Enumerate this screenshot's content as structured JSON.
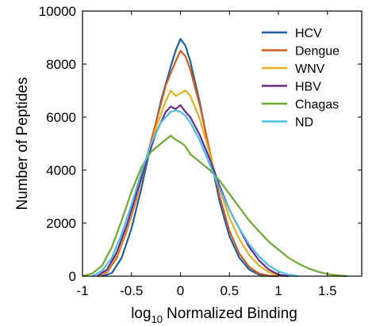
{
  "chart_data": {
    "type": "line",
    "xlabel_base": "log",
    "xlabel_subscript": "10",
    "xlabel_rest": "Normalized Binding",
    "ylabel": "Number of Peptides",
    "xlim": [
      -1,
      1.85
    ],
    "ylim": [
      0,
      10000
    ],
    "xticks": [
      "-1",
      "-0.5",
      "0",
      "0.5",
      "1",
      "1.5"
    ],
    "yticks": [
      "0",
      "2000",
      "4000",
      "6000",
      "8000",
      "10000"
    ],
    "legend_position": "top-right",
    "series": [
      {
        "name": "HCV",
        "color": "#1f5fa0",
        "points": [
          [
            -0.8,
            0
          ],
          [
            -0.7,
            120
          ],
          [
            -0.6,
            700
          ],
          [
            -0.5,
            1800
          ],
          [
            -0.4,
            3300
          ],
          [
            -0.3,
            5000
          ],
          [
            -0.2,
            6600
          ],
          [
            -0.1,
            7900
          ],
          [
            -0.05,
            8500
          ],
          [
            0,
            8950
          ],
          [
            0.05,
            8700
          ],
          [
            0.1,
            8100
          ],
          [
            0.2,
            6500
          ],
          [
            0.3,
            4600
          ],
          [
            0.4,
            2800
          ],
          [
            0.5,
            1500
          ],
          [
            0.6,
            700
          ],
          [
            0.7,
            250
          ],
          [
            0.8,
            60
          ],
          [
            0.9,
            10
          ],
          [
            1.0,
            0
          ]
        ]
      },
      {
        "name": "Dengue",
        "color": "#d45a1e",
        "points": [
          [
            -0.85,
            0
          ],
          [
            -0.75,
            150
          ],
          [
            -0.65,
            700
          ],
          [
            -0.55,
            1700
          ],
          [
            -0.45,
            2900
          ],
          [
            -0.35,
            4400
          ],
          [
            -0.25,
            5800
          ],
          [
            -0.15,
            7200
          ],
          [
            -0.05,
            8100
          ],
          [
            0,
            8500
          ],
          [
            0.05,
            8300
          ],
          [
            0.1,
            7800
          ],
          [
            0.2,
            6400
          ],
          [
            0.3,
            4700
          ],
          [
            0.4,
            3000
          ],
          [
            0.5,
            1700
          ],
          [
            0.6,
            850
          ],
          [
            0.7,
            350
          ],
          [
            0.8,
            100
          ],
          [
            0.9,
            20
          ],
          [
            1.0,
            0
          ]
        ]
      },
      {
        "name": "WNV",
        "color": "#e6b024",
        "points": [
          [
            -0.85,
            0
          ],
          [
            -0.75,
            200
          ],
          [
            -0.65,
            800
          ],
          [
            -0.55,
            1800
          ],
          [
            -0.45,
            3000
          ],
          [
            -0.35,
            4300
          ],
          [
            -0.25,
            5600
          ],
          [
            -0.15,
            6600
          ],
          [
            -0.1,
            7000
          ],
          [
            -0.05,
            6800
          ],
          [
            0,
            6900
          ],
          [
            0.05,
            7000
          ],
          [
            0.1,
            6800
          ],
          [
            0.2,
            5900
          ],
          [
            0.3,
            4600
          ],
          [
            0.4,
            3300
          ],
          [
            0.5,
            2200
          ],
          [
            0.6,
            1400
          ],
          [
            0.7,
            800
          ],
          [
            0.8,
            400
          ],
          [
            0.9,
            150
          ],
          [
            1.0,
            40
          ],
          [
            1.1,
            0
          ]
        ]
      },
      {
        "name": "HBV",
        "color": "#6a2a8a",
        "points": [
          [
            -0.85,
            0
          ],
          [
            -0.75,
            250
          ],
          [
            -0.65,
            900
          ],
          [
            -0.55,
            1900
          ],
          [
            -0.45,
            3100
          ],
          [
            -0.35,
            4300
          ],
          [
            -0.25,
            5400
          ],
          [
            -0.15,
            6200
          ],
          [
            -0.1,
            6400
          ],
          [
            -0.05,
            6300
          ],
          [
            0,
            6450
          ],
          [
            0.05,
            6200
          ],
          [
            0.1,
            6000
          ],
          [
            0.2,
            5300
          ],
          [
            0.3,
            4400
          ],
          [
            0.4,
            3400
          ],
          [
            0.5,
            2500
          ],
          [
            0.6,
            1800
          ],
          [
            0.7,
            1100
          ],
          [
            0.8,
            600
          ],
          [
            0.9,
            250
          ],
          [
            1.0,
            60
          ],
          [
            1.1,
            0
          ]
        ]
      },
      {
        "name": "Chagas",
        "color": "#6fa832",
        "points": [
          [
            -1.0,
            0
          ],
          [
            -0.9,
            100
          ],
          [
            -0.8,
            400
          ],
          [
            -0.7,
            1100
          ],
          [
            -0.6,
            2100
          ],
          [
            -0.5,
            3200
          ],
          [
            -0.4,
            4100
          ],
          [
            -0.3,
            4700
          ],
          [
            -0.2,
            5000
          ],
          [
            -0.1,
            5300
          ],
          [
            -0.05,
            5150
          ],
          [
            0,
            5050
          ],
          [
            0.05,
            4900
          ],
          [
            0.1,
            4600
          ],
          [
            0.2,
            4300
          ],
          [
            0.3,
            4000
          ],
          [
            0.4,
            3600
          ],
          [
            0.5,
            3100
          ],
          [
            0.6,
            2600
          ],
          [
            0.7,
            2100
          ],
          [
            0.8,
            1700
          ],
          [
            0.9,
            1300
          ],
          [
            1.0,
            1000
          ],
          [
            1.1,
            700
          ],
          [
            1.2,
            480
          ],
          [
            1.3,
            300
          ],
          [
            1.4,
            170
          ],
          [
            1.5,
            80
          ],
          [
            1.6,
            30
          ],
          [
            1.7,
            0
          ]
        ]
      },
      {
        "name": "ND",
        "color": "#4bbde8",
        "points": [
          [
            -0.9,
            0
          ],
          [
            -0.8,
            200
          ],
          [
            -0.7,
            700
          ],
          [
            -0.6,
            1600
          ],
          [
            -0.5,
            2700
          ],
          [
            -0.4,
            3900
          ],
          [
            -0.3,
            5000
          ],
          [
            -0.2,
            5800
          ],
          [
            -0.1,
            6200
          ],
          [
            -0.05,
            6250
          ],
          [
            0,
            6200
          ],
          [
            0.05,
            6050
          ],
          [
            0.1,
            5800
          ],
          [
            0.2,
            5100
          ],
          [
            0.3,
            4200
          ],
          [
            0.4,
            3300
          ],
          [
            0.5,
            2500
          ],
          [
            0.6,
            1800
          ],
          [
            0.7,
            1200
          ],
          [
            0.8,
            750
          ],
          [
            0.9,
            400
          ],
          [
            1.0,
            180
          ],
          [
            1.1,
            60
          ],
          [
            1.2,
            0
          ]
        ]
      }
    ]
  }
}
